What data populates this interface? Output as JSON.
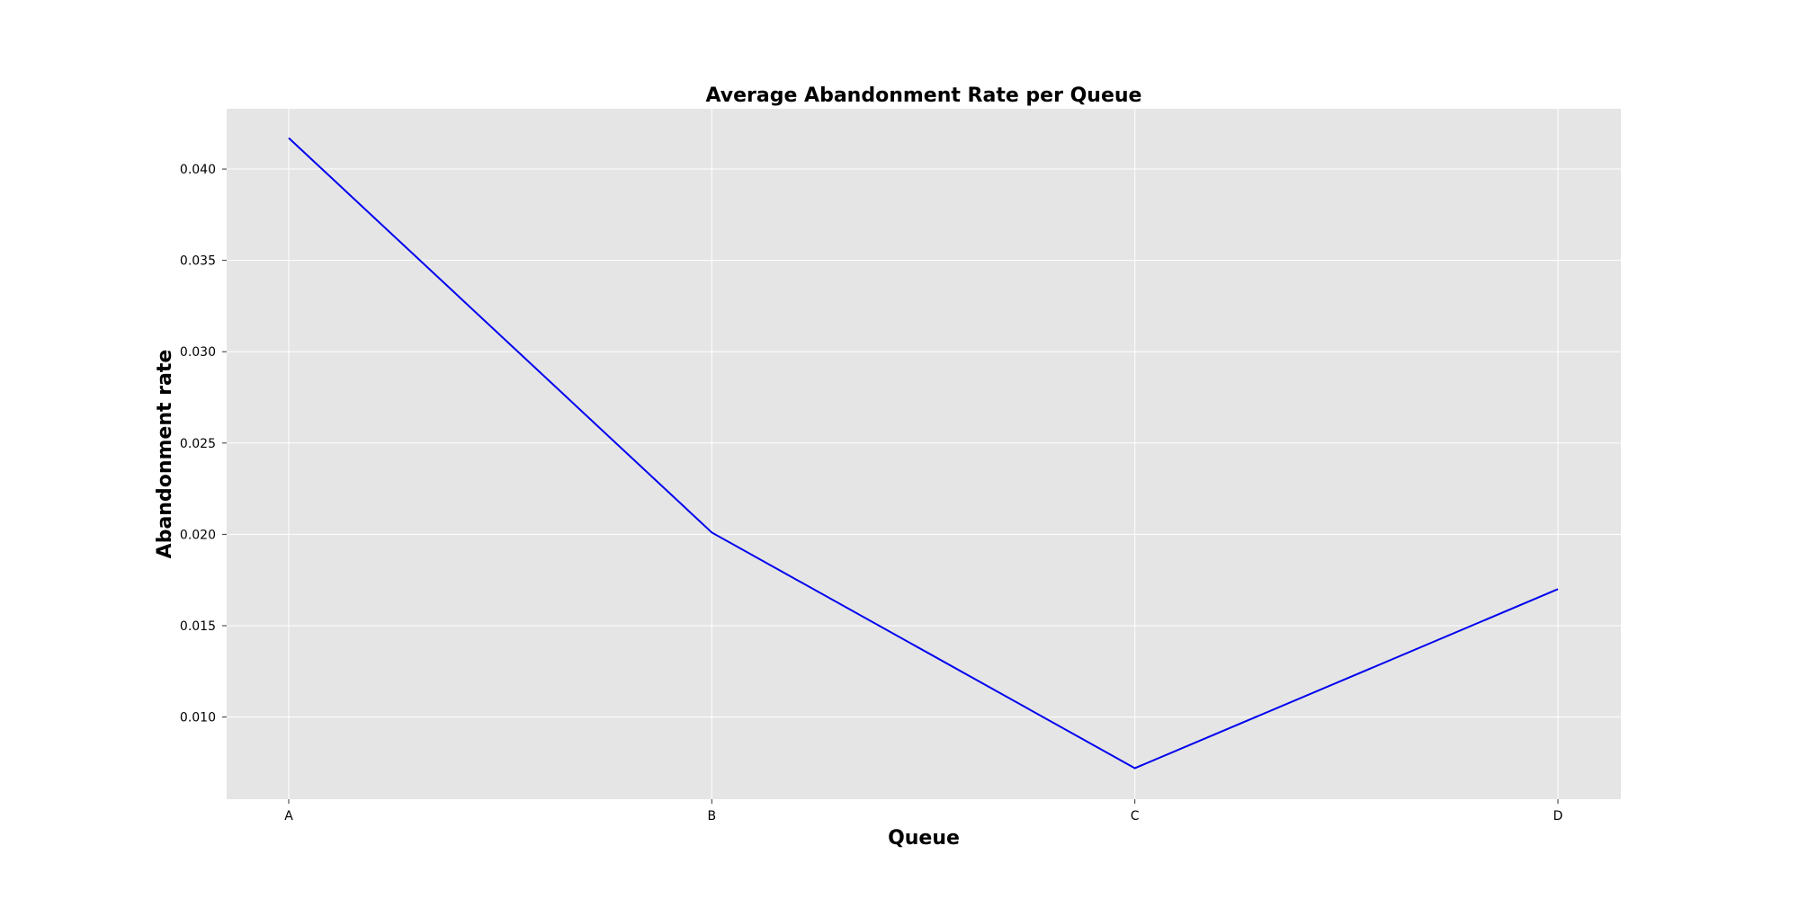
{
  "chart_data": {
    "type": "line",
    "title": "Average Abandonment Rate per Queue",
    "xlabel": "Queue",
    "ylabel": "Abandonment rate",
    "categories": [
      "A",
      "B",
      "C",
      "D"
    ],
    "series": [
      {
        "values": [
          0.0417,
          0.0201,
          0.0072,
          0.017
        ],
        "color": "#0000ee"
      }
    ],
    "ylim": [
      0.0055,
      0.0433
    ],
    "yticks": [
      0.01,
      0.015,
      0.02,
      0.025,
      0.03,
      0.035,
      0.04
    ],
    "ytick_labels": [
      "0.010",
      "0.015",
      "0.020",
      "0.025",
      "0.030",
      "0.035",
      "0.040"
    ],
    "grid": true,
    "colors": {
      "plot_background": "#e5e5e5",
      "grid": "#ffffff",
      "axis_text": "#000000"
    }
  }
}
